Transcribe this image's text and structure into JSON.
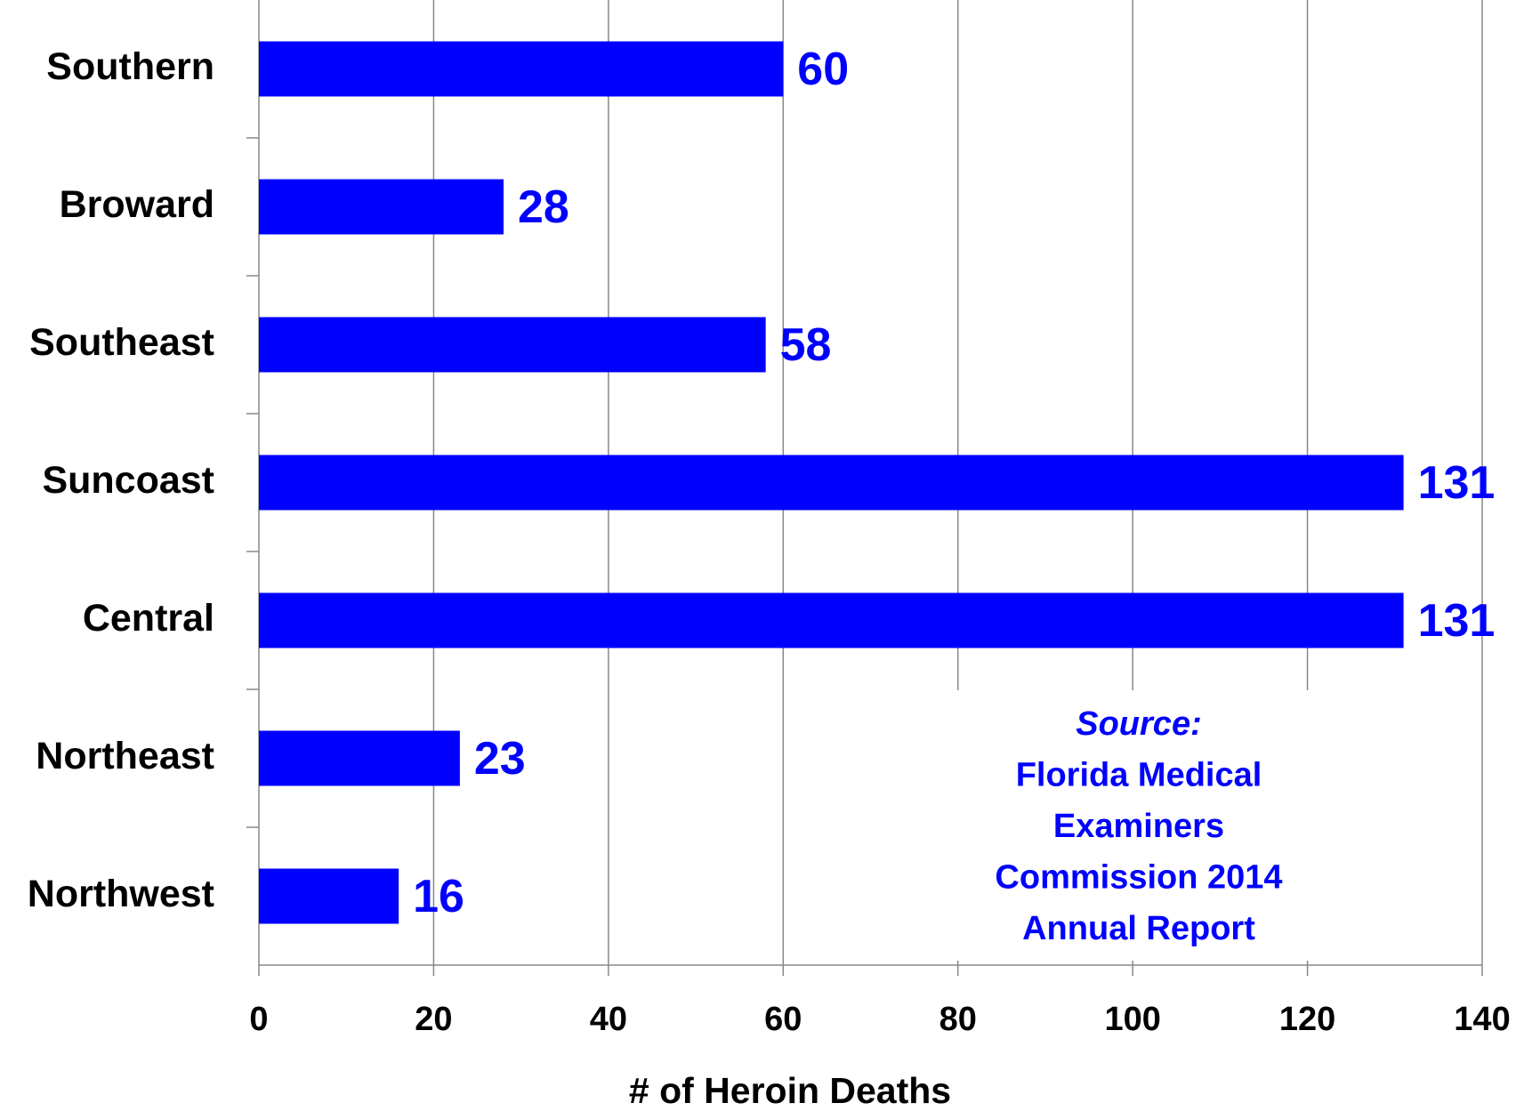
{
  "chart_data": {
    "type": "hbar",
    "categories": [
      "Southern",
      "Broward",
      "Southeast",
      "Suncoast",
      "Central",
      "Northeast",
      "Northwest"
    ],
    "values": [
      60,
      28,
      58,
      131,
      131,
      23,
      16
    ],
    "color": "#0000ff",
    "xlabel": "# of Heroin Deaths",
    "xlim": [
      0,
      140
    ],
    "xticks": [
      0,
      20,
      40,
      60,
      80,
      100,
      120,
      140
    ],
    "grid": true,
    "annotation": [
      "Source:",
      "Florida Medical",
      "Examiners",
      "Commission 2014",
      "Annual Report"
    ]
  }
}
